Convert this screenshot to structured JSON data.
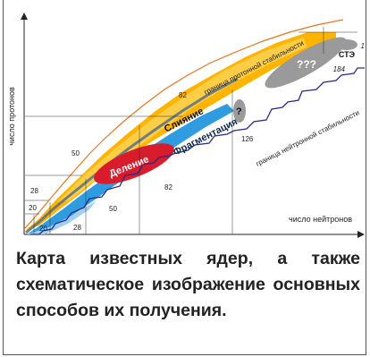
{
  "chart_data": {
    "type": "scatter",
    "title": "",
    "xlabel": "число нейтронов",
    "ylabel": "число протонов",
    "boundary_labels": {
      "proton": "граница протонной стабильности",
      "neutron": "граница нейтронной стабильности"
    },
    "regions": {
      "fusion": "Слияние",
      "fragmentation": "Фрагментация",
      "fission": "Деление",
      "unknown": "?",
      "superheavy": "???",
      "island": "СТЭ"
    },
    "magic_numbers": {
      "protons": [
        "20",
        "28",
        "50",
        "82"
      ],
      "neutrons": [
        "20",
        "28",
        "50",
        "82",
        "126",
        "184"
      ]
    },
    "marker_one": "1"
  },
  "caption": "Карта известных ядер, а также схематическое изображение основных способов их получения.",
  "colors": {
    "stable": "#5b6f86",
    "fusion_region": "#ffb400",
    "fusion_light": "#fbd45a",
    "fragmentation_region": "#2f9be0",
    "fission_region": "#d81c2c",
    "proton_line": "#e8751a",
    "neutron_line": "#2a2a8c",
    "grey_regions": "#9a9a9a"
  }
}
